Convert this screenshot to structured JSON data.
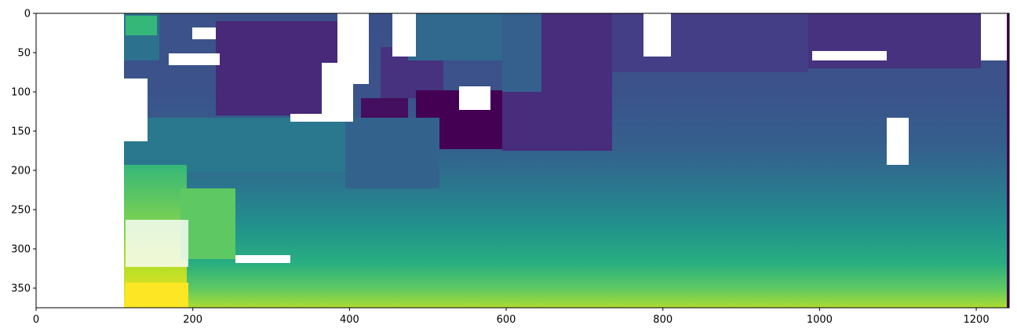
{
  "chart_data": {
    "type": "heatmap",
    "title": "",
    "xlabel": "",
    "ylabel": "",
    "colormap": "viridis",
    "xlim": [
      0,
      1242
    ],
    "ylim": [
      375,
      0
    ],
    "x_ticks": [
      0,
      200,
      400,
      600,
      800,
      1000,
      1200
    ],
    "y_ticks": [
      0,
      50,
      100,
      150,
      200,
      250,
      300,
      350
    ],
    "grid": false,
    "legend": "none",
    "no_data_color": "#ffffff",
    "image_width": 1242,
    "image_height": 375
  }
}
